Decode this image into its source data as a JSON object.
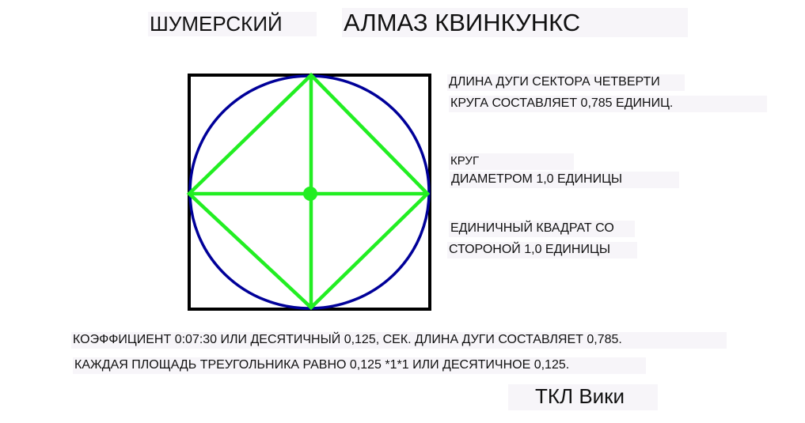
{
  "title_left": "ШУМЕРСКИЙ",
  "title_main": "АЛМАЗ КВИНКУНКС",
  "arc_note": {
    "line1": "ДЛИНА ДУГИ СЕКТОРА ЧЕТВЕРТИ",
    "line2": "КРУГА СОСТАВЛЯЕТ 0,785 ЕДИНИЦ."
  },
  "circle_note": {
    "line1": "КРУГ",
    "line2": "ДИАМЕТРОМ 1,0 ЕДИНИЦЫ"
  },
  "square_note": {
    "line1": "ЕДИНИЧНЫЙ КВАДРАТ СО",
    "line2": "СТОРОНОЙ 1,0 ЕДИНИЦЫ"
  },
  "bottom": {
    "line1": "КОЭФФИЦИЕНТ 0:07:30 ИЛИ ДЕСЯТИЧНЫЙ 0,125, СЕК. ДЛИНА ДУГИ СОСТАВЛЯЕТ 0,785.",
    "line2": "КАЖДАЯ ПЛОЩАДЬ ТРЕУГОЛЬНИКА РАВНО 0,125 *1*1 ИЛИ ДЕСЯТИЧНОЕ 0,125."
  },
  "credit": "ТКЛ Вики",
  "colors": {
    "square": "#000000",
    "circle": "#000099",
    "diamond": "#22ee22",
    "label_background": "#f7f5f9"
  }
}
